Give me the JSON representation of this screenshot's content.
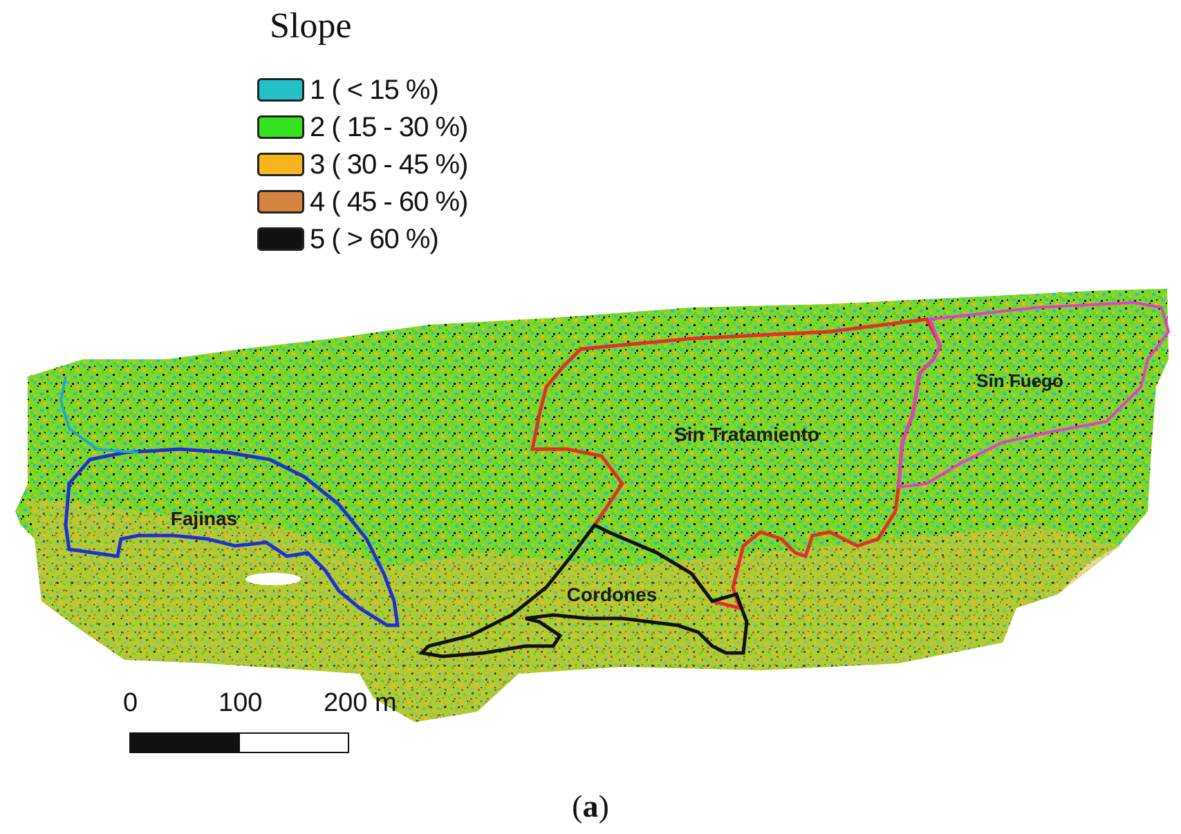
{
  "legend": {
    "title": "Slope",
    "items": [
      {
        "class": "1",
        "label": "1 ( < 15 %)",
        "color": "#22c1c8"
      },
      {
        "class": "2",
        "label": "2 ( 15 - 30 %)",
        "color": "#35e21f"
      },
      {
        "class": "3",
        "label": "3 ( 30 - 45 %)",
        "color": "#f7b51d"
      },
      {
        "class": "4",
        "label": "4 ( 45 - 60 %)",
        "color": "#d4843e"
      },
      {
        "class": "5",
        "label": "5 ( > 60 %)",
        "color": "#111111"
      }
    ]
  },
  "zones": {
    "fajinas": {
      "label": "Fajinas",
      "color": "#1f2fd6"
    },
    "sin_tratamiento": {
      "label": "Sin Tratamiento",
      "color": "#e0302a"
    },
    "sin_fuego": {
      "label": "Sin Fuego",
      "color": "#e040c8"
    },
    "cordones": {
      "label": "Cordones",
      "color": "#111111"
    }
  },
  "scale_bar": {
    "labels": [
      "0",
      "100",
      "200 m"
    ]
  },
  "caption": {
    "open": "(",
    "letter": "a",
    "close": ")"
  }
}
